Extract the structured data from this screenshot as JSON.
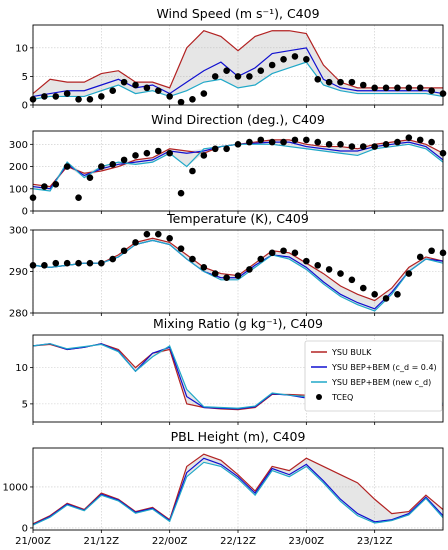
{
  "colors": {
    "bulk": "#b22222",
    "bep_cd04": "#1010d0",
    "bep_newcd": "#20a8c8",
    "obs": "#000000",
    "band": "#b8b8b8",
    "band_red": "#f2b8b8"
  },
  "xaxis": {
    "ticklabels": [
      "21/00Z",
      "21/12Z",
      "22/00Z",
      "22/12Z",
      "23/00Z",
      "23/12Z"
    ],
    "ticks_hours": [
      0,
      12,
      24,
      36,
      48,
      60
    ],
    "range_hours": [
      0,
      72
    ]
  },
  "legend": {
    "labels": [
      "YSU BULK",
      "YSU BEP+BEM (c_d = 0.4)",
      "YSU BEP+BEM (new c_d)",
      "TCEQ"
    ]
  },
  "chart_data": [
    {
      "type": "line",
      "title": "Wind Speed (m s⁻¹), C409",
      "ylim": [
        0,
        14
      ],
      "yticks": [
        0,
        5,
        10
      ],
      "x_hours_model": [
        0,
        3,
        6,
        9,
        12,
        15,
        18,
        21,
        24,
        27,
        30,
        33,
        36,
        39,
        42,
        45,
        48,
        51,
        54,
        57,
        60,
        63,
        66,
        69,
        72
      ],
      "series": [
        {
          "name": "YSU BULK",
          "values": [
            2,
            4.5,
            4,
            4,
            5.5,
            6,
            4,
            4,
            3,
            10,
            13,
            12,
            9.5,
            12,
            13,
            13,
            12.5,
            7,
            4,
            3,
            3,
            3,
            3,
            3,
            3
          ]
        },
        {
          "name": "YSU BEP+BEM (c_d = 0.4)",
          "values": [
            1.5,
            2,
            2.5,
            2.5,
            3.5,
            4.5,
            3,
            3.5,
            2,
            4,
            6,
            7.5,
            5,
            6.5,
            9,
            9.5,
            10,
            4.5,
            3,
            2.5,
            2.5,
            2.5,
            2.5,
            2.5,
            2
          ]
        },
        {
          "name": "YSU BEP+BEM (new c_d)",
          "values": [
            1,
            1.5,
            1.5,
            1.5,
            2.5,
            3.5,
            2,
            2.5,
            1.5,
            2.5,
            4,
            4.5,
            3,
            3.5,
            5.5,
            6.5,
            7.5,
            3.5,
            2.5,
            2,
            2,
            2,
            2,
            2,
            1.5
          ]
        },
        {
          "name": "TCEQ",
          "x_hours": [
            0,
            2,
            4,
            6,
            8,
            10,
            12,
            14,
            16,
            18,
            20,
            22,
            24,
            26,
            28,
            30,
            32,
            34,
            36,
            38,
            40,
            42,
            44,
            46,
            48,
            50,
            52,
            54,
            56,
            58,
            60,
            62,
            64,
            66,
            68,
            70,
            72
          ],
          "values": [
            1,
            1.5,
            1.5,
            2,
            1,
            1,
            1.5,
            2.5,
            4,
            3.5,
            3,
            2.5,
            1.5,
            0.5,
            1,
            2,
            5,
            6,
            5,
            5,
            6,
            7,
            8,
            8.5,
            8,
            4.5,
            4,
            4,
            4,
            3.5,
            3,
            3,
            3,
            3,
            3,
            2.5,
            2
          ]
        }
      ]
    },
    {
      "type": "line",
      "title": "Wind Direction (deg.), C409",
      "ylim": [
        0,
        360
      ],
      "yticks": [
        0,
        100,
        200,
        300
      ],
      "x_hours_model": [
        0,
        3,
        6,
        9,
        12,
        15,
        18,
        21,
        24,
        27,
        30,
        33,
        36,
        39,
        42,
        45,
        48,
        51,
        54,
        57,
        60,
        63,
        66,
        69,
        72
      ],
      "series": [
        {
          "name": "YSU BULK",
          "values": [
            120,
            110,
            200,
            170,
            180,
            200,
            230,
            240,
            280,
            270,
            260,
            290,
            300,
            310,
            320,
            320,
            300,
            290,
            290,
            280,
            300,
            310,
            320,
            300,
            260
          ]
        },
        {
          "name": "YSU BEP+BEM (c_d = 0.4)",
          "values": [
            110,
            100,
            210,
            160,
            190,
            210,
            220,
            230,
            270,
            260,
            270,
            290,
            300,
            305,
            310,
            310,
            290,
            280,
            270,
            270,
            290,
            300,
            310,
            290,
            230
          ]
        },
        {
          "name": "YSU BEP+BEM (new c_d)",
          "values": [
            100,
            90,
            220,
            150,
            200,
            220,
            210,
            220,
            260,
            200,
            280,
            290,
            300,
            300,
            300,
            290,
            280,
            270,
            260,
            250,
            280,
            290,
            300,
            280,
            220
          ]
        },
        {
          "name": "TCEQ",
          "x_hours": [
            0,
            2,
            4,
            6,
            8,
            10,
            12,
            14,
            16,
            18,
            20,
            22,
            24,
            26,
            28,
            30,
            32,
            34,
            36,
            38,
            40,
            42,
            44,
            46,
            48,
            50,
            52,
            54,
            56,
            58,
            60,
            62,
            64,
            66,
            68,
            70,
            72
          ],
          "values": [
            60,
            110,
            120,
            200,
            60,
            150,
            200,
            210,
            230,
            250,
            260,
            270,
            260,
            80,
            180,
            250,
            280,
            280,
            300,
            310,
            320,
            310,
            310,
            320,
            320,
            310,
            300,
            300,
            290,
            290,
            290,
            300,
            310,
            330,
            320,
            310,
            260
          ]
        }
      ]
    },
    {
      "type": "line",
      "title": "Temperature (K), C409",
      "ylim": [
        280,
        300
      ],
      "yticks": [
        280,
        290,
        300
      ],
      "x_hours_model": [
        0,
        3,
        6,
        9,
        12,
        15,
        18,
        21,
        24,
        27,
        30,
        33,
        36,
        39,
        42,
        45,
        48,
        51,
        54,
        57,
        60,
        63,
        66,
        69,
        72
      ],
      "series": [
        {
          "name": "YSU BULK",
          "values": [
            291.5,
            291,
            291.5,
            292,
            292,
            294,
            297,
            298,
            297,
            294,
            291,
            289.5,
            289,
            292,
            295,
            294.5,
            292,
            289.5,
            286.5,
            284.5,
            283,
            286,
            291,
            293.5,
            292.5
          ]
        },
        {
          "name": "YSU BEP+BEM (c_d = 0.4)",
          "values": [
            291.5,
            291,
            291.5,
            292,
            292,
            293.5,
            296.5,
            297.5,
            296.5,
            293,
            290,
            288.5,
            288.5,
            291.5,
            294,
            293.5,
            291,
            287.5,
            284.5,
            282.5,
            281,
            285,
            290,
            293,
            292.5
          ]
        },
        {
          "name": "YSU BEP+BEM (new c_d)",
          "values": [
            291.5,
            291,
            291.5,
            292,
            292,
            293.5,
            296.5,
            297.5,
            296.5,
            293,
            290,
            288,
            288,
            291,
            294,
            293,
            290.5,
            287,
            284,
            282,
            280.5,
            284.5,
            290,
            293,
            292
          ]
        },
        {
          "name": "TCEQ",
          "x_hours": [
            0,
            2,
            4,
            6,
            8,
            10,
            12,
            14,
            16,
            18,
            20,
            22,
            24,
            26,
            28,
            30,
            32,
            34,
            36,
            38,
            40,
            42,
            44,
            46,
            48,
            50,
            52,
            54,
            56,
            58,
            60,
            62,
            64,
            66,
            68,
            70,
            72
          ],
          "values": [
            291.5,
            291.5,
            292,
            292,
            292,
            292,
            292,
            293,
            295,
            297,
            299,
            299,
            298,
            295.5,
            293,
            291,
            289.5,
            288.5,
            289,
            290.5,
            293,
            294.5,
            295,
            294.5,
            292.5,
            291.5,
            290.5,
            289.5,
            288,
            286,
            284.5,
            283.5,
            284.5,
            289.5,
            293.5,
            295,
            294.5
          ]
        }
      ]
    },
    {
      "type": "line",
      "title": "Mixing Ratio (g kg⁻¹), C409",
      "ylim": [
        2.5,
        14.5
      ],
      "yticks": [
        5,
        10
      ],
      "x_hours_model": [
        0,
        3,
        6,
        9,
        12,
        15,
        18,
        21,
        24,
        27,
        30,
        33,
        36,
        39,
        42,
        45,
        48,
        51,
        54,
        57,
        60,
        63,
        66,
        69,
        72
      ],
      "series": [
        {
          "name": "YSU BULK",
          "values": [
            13,
            13.2,
            12.5,
            12.8,
            13.3,
            12.5,
            10,
            12,
            12.5,
            5,
            4.5,
            4.3,
            4.2,
            4.5,
            6.3,
            6.3,
            6.2,
            4.8,
            4.5,
            4.3,
            4.2,
            4.2,
            4.2,
            4.3,
            4.8
          ]
        },
        {
          "name": "YSU BEP+BEM (c_d = 0.4)",
          "values": [
            13,
            13.3,
            12.5,
            12.8,
            13.3,
            12.3,
            9.5,
            12,
            12.8,
            6,
            4.5,
            4.4,
            4.3,
            4.6,
            6.4,
            6.2,
            5.8,
            5.5,
            5,
            4.5,
            4.3,
            4.3,
            4.4,
            4.6,
            5
          ]
        },
        {
          "name": "YSU BEP+BEM (new c_d)",
          "values": [
            13,
            13.3,
            12.6,
            12.9,
            13.2,
            12.2,
            9.5,
            11.5,
            13,
            7,
            4.6,
            4.5,
            4.4,
            4.7,
            6.5,
            6.2,
            6,
            5.6,
            5.1,
            4.6,
            4.4,
            4.4,
            4.5,
            4.7,
            5.1
          ]
        }
      ]
    },
    {
      "type": "line",
      "title": "PBL Height (m), C409",
      "ylim": [
        -50,
        1950
      ],
      "yticks": [
        0,
        1000
      ],
      "x_hours_model": [
        0,
        3,
        6,
        9,
        12,
        15,
        18,
        21,
        24,
        27,
        30,
        33,
        36,
        39,
        42,
        45,
        48,
        51,
        54,
        57,
        60,
        63,
        66,
        69,
        72
      ],
      "series": [
        {
          "name": "YSU BULK",
          "values": [
            100,
            300,
            600,
            450,
            850,
            700,
            400,
            500,
            200,
            1500,
            1800,
            1650,
            1300,
            900,
            1500,
            1400,
            1700,
            1500,
            1300,
            1100,
            700,
            350,
            400,
            800,
            450
          ]
        },
        {
          "name": "YSU BEP+BEM (c_d = 0.4)",
          "values": [
            80,
            280,
            580,
            430,
            820,
            680,
            380,
            480,
            180,
            1350,
            1700,
            1550,
            1250,
            850,
            1450,
            1300,
            1550,
            1150,
            700,
            350,
            150,
            200,
            350,
            750,
            300
          ]
        },
        {
          "name": "YSU BEP+BEM (new c_d)",
          "values": [
            70,
            260,
            560,
            420,
            800,
            660,
            360,
            460,
            160,
            1250,
            1600,
            1500,
            1200,
            800,
            1400,
            1250,
            1500,
            1100,
            650,
            300,
            120,
            180,
            320,
            720,
            250
          ]
        }
      ]
    }
  ]
}
